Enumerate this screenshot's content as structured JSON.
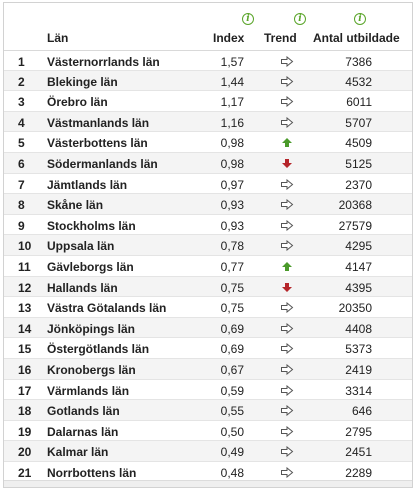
{
  "columns": {
    "lan": "Län",
    "index": "Index",
    "trend": "Trend",
    "antal": "Antal utbildade"
  },
  "info_icon_glyph": "i",
  "colors": {
    "up": "#4a9a2a",
    "down": "#b5252a",
    "neutral": "#555555"
  },
  "rows": [
    {
      "rank": "1",
      "name": "Västernorrlands län",
      "index": "1,57",
      "trend": "neutral",
      "count": "7386"
    },
    {
      "rank": "2",
      "name": "Blekinge län",
      "index": "1,44",
      "trend": "neutral",
      "count": "4532"
    },
    {
      "rank": "3",
      "name": "Örebro län",
      "index": "1,17",
      "trend": "neutral",
      "count": "6011"
    },
    {
      "rank": "4",
      "name": "Västmanlands län",
      "index": "1,16",
      "trend": "neutral",
      "count": "5707"
    },
    {
      "rank": "5",
      "name": "Västerbottens län",
      "index": "0,98",
      "trend": "up",
      "count": "4509"
    },
    {
      "rank": "6",
      "name": "Södermanlands län",
      "index": "0,98",
      "trend": "down",
      "count": "5125"
    },
    {
      "rank": "7",
      "name": "Jämtlands län",
      "index": "0,97",
      "trend": "neutral",
      "count": "2370"
    },
    {
      "rank": "8",
      "name": "Skåne län",
      "index": "0,93",
      "trend": "neutral",
      "count": "20368"
    },
    {
      "rank": "9",
      "name": "Stockholms län",
      "index": "0,93",
      "trend": "neutral",
      "count": "27579"
    },
    {
      "rank": "10",
      "name": "Uppsala län",
      "index": "0,78",
      "trend": "neutral",
      "count": "4295"
    },
    {
      "rank": "11",
      "name": "Gävleborgs län",
      "index": "0,77",
      "trend": "up",
      "count": "4147"
    },
    {
      "rank": "12",
      "name": "Hallands län",
      "index": "0,75",
      "trend": "down",
      "count": "4395"
    },
    {
      "rank": "13",
      "name": "Västra Götalands län",
      "index": "0,75",
      "trend": "neutral",
      "count": "20350"
    },
    {
      "rank": "14",
      "name": "Jönköpings län",
      "index": "0,69",
      "trend": "neutral",
      "count": "4408"
    },
    {
      "rank": "15",
      "name": "Östergötlands län",
      "index": "0,69",
      "trend": "neutral",
      "count": "5373"
    },
    {
      "rank": "16",
      "name": "Kronobergs län",
      "index": "0,67",
      "trend": "neutral",
      "count": "2419"
    },
    {
      "rank": "17",
      "name": "Värmlands län",
      "index": "0,59",
      "trend": "neutral",
      "count": "3314"
    },
    {
      "rank": "18",
      "name": "Gotlands län",
      "index": "0,55",
      "trend": "neutral",
      "count": "646"
    },
    {
      "rank": "19",
      "name": "Dalarnas län",
      "index": "0,50",
      "trend": "neutral",
      "count": "2795"
    },
    {
      "rank": "20",
      "name": "Kalmar län",
      "index": "0,49",
      "trend": "neutral",
      "count": "2451"
    },
    {
      "rank": "21",
      "name": "Norrbottens län",
      "index": "0,48",
      "trend": "neutral",
      "count": "2289"
    }
  ]
}
